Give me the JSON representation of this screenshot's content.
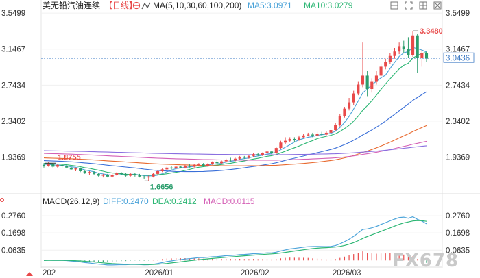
{
  "chart_data": {
    "type": "candlestick",
    "title": "美无铅汽油连续",
    "period": "【日线】",
    "ma_label": "MA(5,10,30,60,100,200)",
    "ma5_label": "MA5:3.0971",
    "ma10_label": "MA10:3.0279",
    "ylim": [
      1.55,
      3.62
    ],
    "y_ticks": [
      "3.5499",
      "3.1467",
      "2.7434",
      "2.3402",
      "1.9369"
    ],
    "x_ticks": [
      "202",
      "2026/01",
      "2026/02",
      "2026/03"
    ],
    "current_price": "3.0436",
    "high_label": "3.3480",
    "low_label": "1.6656",
    "left_label": "1.8755",
    "candles": [
      [
        1.85,
        1.84,
        1.87,
        1.82
      ],
      [
        1.84,
        1.86,
        1.88,
        1.83
      ],
      [
        1.86,
        1.83,
        1.87,
        1.82
      ],
      [
        1.83,
        1.85,
        1.86,
        1.82
      ],
      [
        1.85,
        1.84,
        1.86,
        1.82
      ],
      [
        1.84,
        1.82,
        1.85,
        1.81
      ],
      [
        1.82,
        1.8,
        1.83,
        1.79
      ],
      [
        1.8,
        1.81,
        1.82,
        1.78
      ],
      [
        1.81,
        1.78,
        1.82,
        1.77
      ],
      [
        1.78,
        1.76,
        1.79,
        1.75
      ],
      [
        1.76,
        1.77,
        1.78,
        1.74
      ],
      [
        1.77,
        1.75,
        1.78,
        1.74
      ],
      [
        1.75,
        1.73,
        1.76,
        1.72
      ],
      [
        1.73,
        1.74,
        1.75,
        1.71
      ],
      [
        1.74,
        1.72,
        1.75,
        1.71
      ],
      [
        1.72,
        1.74,
        1.75,
        1.71
      ],
      [
        1.74,
        1.76,
        1.77,
        1.73
      ],
      [
        1.76,
        1.75,
        1.77,
        1.74
      ],
      [
        1.75,
        1.73,
        1.76,
        1.72
      ],
      [
        1.73,
        1.75,
        1.76,
        1.72
      ],
      [
        1.75,
        1.74,
        1.76,
        1.72
      ],
      [
        1.74,
        1.72,
        1.75,
        1.71
      ],
      [
        1.72,
        1.71,
        1.73,
        1.69
      ],
      [
        1.71,
        1.72,
        1.73,
        1.67
      ],
      [
        1.72,
        1.75,
        1.76,
        1.71
      ],
      [
        1.75,
        1.78,
        1.79,
        1.74
      ],
      [
        1.78,
        1.8,
        1.81,
        1.77
      ],
      [
        1.8,
        1.82,
        1.83,
        1.79
      ],
      [
        1.82,
        1.81,
        1.84,
        1.8
      ],
      [
        1.81,
        1.83,
        1.84,
        1.8
      ],
      [
        1.83,
        1.82,
        1.84,
        1.81
      ],
      [
        1.82,
        1.84,
        1.85,
        1.81
      ],
      [
        1.84,
        1.83,
        1.86,
        1.82
      ],
      [
        1.83,
        1.85,
        1.86,
        1.82
      ],
      [
        1.85,
        1.86,
        1.87,
        1.84
      ],
      [
        1.86,
        1.84,
        1.87,
        1.83
      ],
      [
        1.84,
        1.86,
        1.87,
        1.83
      ],
      [
        1.86,
        1.88,
        1.89,
        1.85
      ],
      [
        1.88,
        1.87,
        1.9,
        1.86
      ],
      [
        1.87,
        1.89,
        1.9,
        1.86
      ],
      [
        1.89,
        1.91,
        1.92,
        1.88
      ],
      [
        1.91,
        1.9,
        1.93,
        1.89
      ],
      [
        1.9,
        1.92,
        1.93,
        1.89
      ],
      [
        1.92,
        1.94,
        1.95,
        1.91
      ],
      [
        1.94,
        1.93,
        1.95,
        1.92
      ],
      [
        1.93,
        1.95,
        1.96,
        1.92
      ],
      [
        1.95,
        1.97,
        1.98,
        1.94
      ],
      [
        1.97,
        1.96,
        1.98,
        1.95
      ],
      [
        1.96,
        1.98,
        1.99,
        1.95
      ],
      [
        1.98,
        2.0,
        2.01,
        1.97
      ],
      [
        2.0,
        1.98,
        2.01,
        1.97
      ],
      [
        1.98,
        2.04,
        2.05,
        1.97
      ],
      [
        2.04,
        2.1,
        2.12,
        2.03
      ],
      [
        2.1,
        2.12,
        2.16,
        2.08
      ],
      [
        2.12,
        2.14,
        2.16,
        2.11
      ],
      [
        2.14,
        2.13,
        2.16,
        2.11
      ],
      [
        2.13,
        2.16,
        2.18,
        2.12
      ],
      [
        2.16,
        2.18,
        2.2,
        2.15
      ],
      [
        2.18,
        2.19,
        2.21,
        2.17
      ],
      [
        2.19,
        2.18,
        2.21,
        2.16
      ],
      [
        2.18,
        2.2,
        2.22,
        2.17
      ],
      [
        2.2,
        2.19,
        2.22,
        2.18
      ],
      [
        2.19,
        2.21,
        2.23,
        2.18
      ],
      [
        2.21,
        2.24,
        2.26,
        2.2
      ],
      [
        2.24,
        2.3,
        2.32,
        2.23
      ],
      [
        2.3,
        2.4,
        2.42,
        2.28
      ],
      [
        2.4,
        2.48,
        2.5,
        2.38
      ],
      [
        2.48,
        2.55,
        2.6,
        2.46
      ],
      [
        2.55,
        2.65,
        2.68,
        2.52
      ],
      [
        2.65,
        2.75,
        2.78,
        2.63
      ],
      [
        2.75,
        2.85,
        3.22,
        2.72
      ],
      [
        2.85,
        2.7,
        2.9,
        2.62
      ],
      [
        2.7,
        2.78,
        2.82,
        2.66
      ],
      [
        2.78,
        2.85,
        2.9,
        2.75
      ],
      [
        2.85,
        2.95,
        2.98,
        2.82
      ],
      [
        2.95,
        3.0,
        3.04,
        2.92
      ],
      [
        3.0,
        3.07,
        3.1,
        2.98
      ],
      [
        3.07,
        3.12,
        3.16,
        3.04
      ],
      [
        3.12,
        3.18,
        3.22,
        3.09
      ],
      [
        3.18,
        3.15,
        3.24,
        3.1
      ],
      [
        3.15,
        3.08,
        3.28,
        3.05
      ],
      [
        3.08,
        3.3,
        3.35,
        3.06
      ],
      [
        3.3,
        3.05,
        3.32,
        2.88
      ],
      [
        3.05,
        3.1,
        3.14,
        2.95
      ],
      [
        3.1,
        3.04,
        3.12,
        3.0
      ]
    ],
    "macd_label": "MACD(26,12,9)",
    "dif_label": "DIFF:0.2470",
    "dea_label": "DEA:0.2412",
    "macd_value_label": "MACD:0.0115",
    "macd_ylim": [
      -0.02,
      0.34
    ],
    "macd_ticks": [
      "0.2760",
      "0.1698",
      "0.0635"
    ],
    "colors": {
      "up": "#e84a4a",
      "down": "#2a9d6c",
      "ma5": "#4ba3d9",
      "ma10": "#2bb673",
      "ma30": "#3a6fd8",
      "ma60": "#e8692e",
      "ma100": "#d45fb5",
      "ma200": "#8a6fe0",
      "dif": "#4ba3d9",
      "dea": "#2bb673"
    },
    "watermark": "FX678"
  }
}
